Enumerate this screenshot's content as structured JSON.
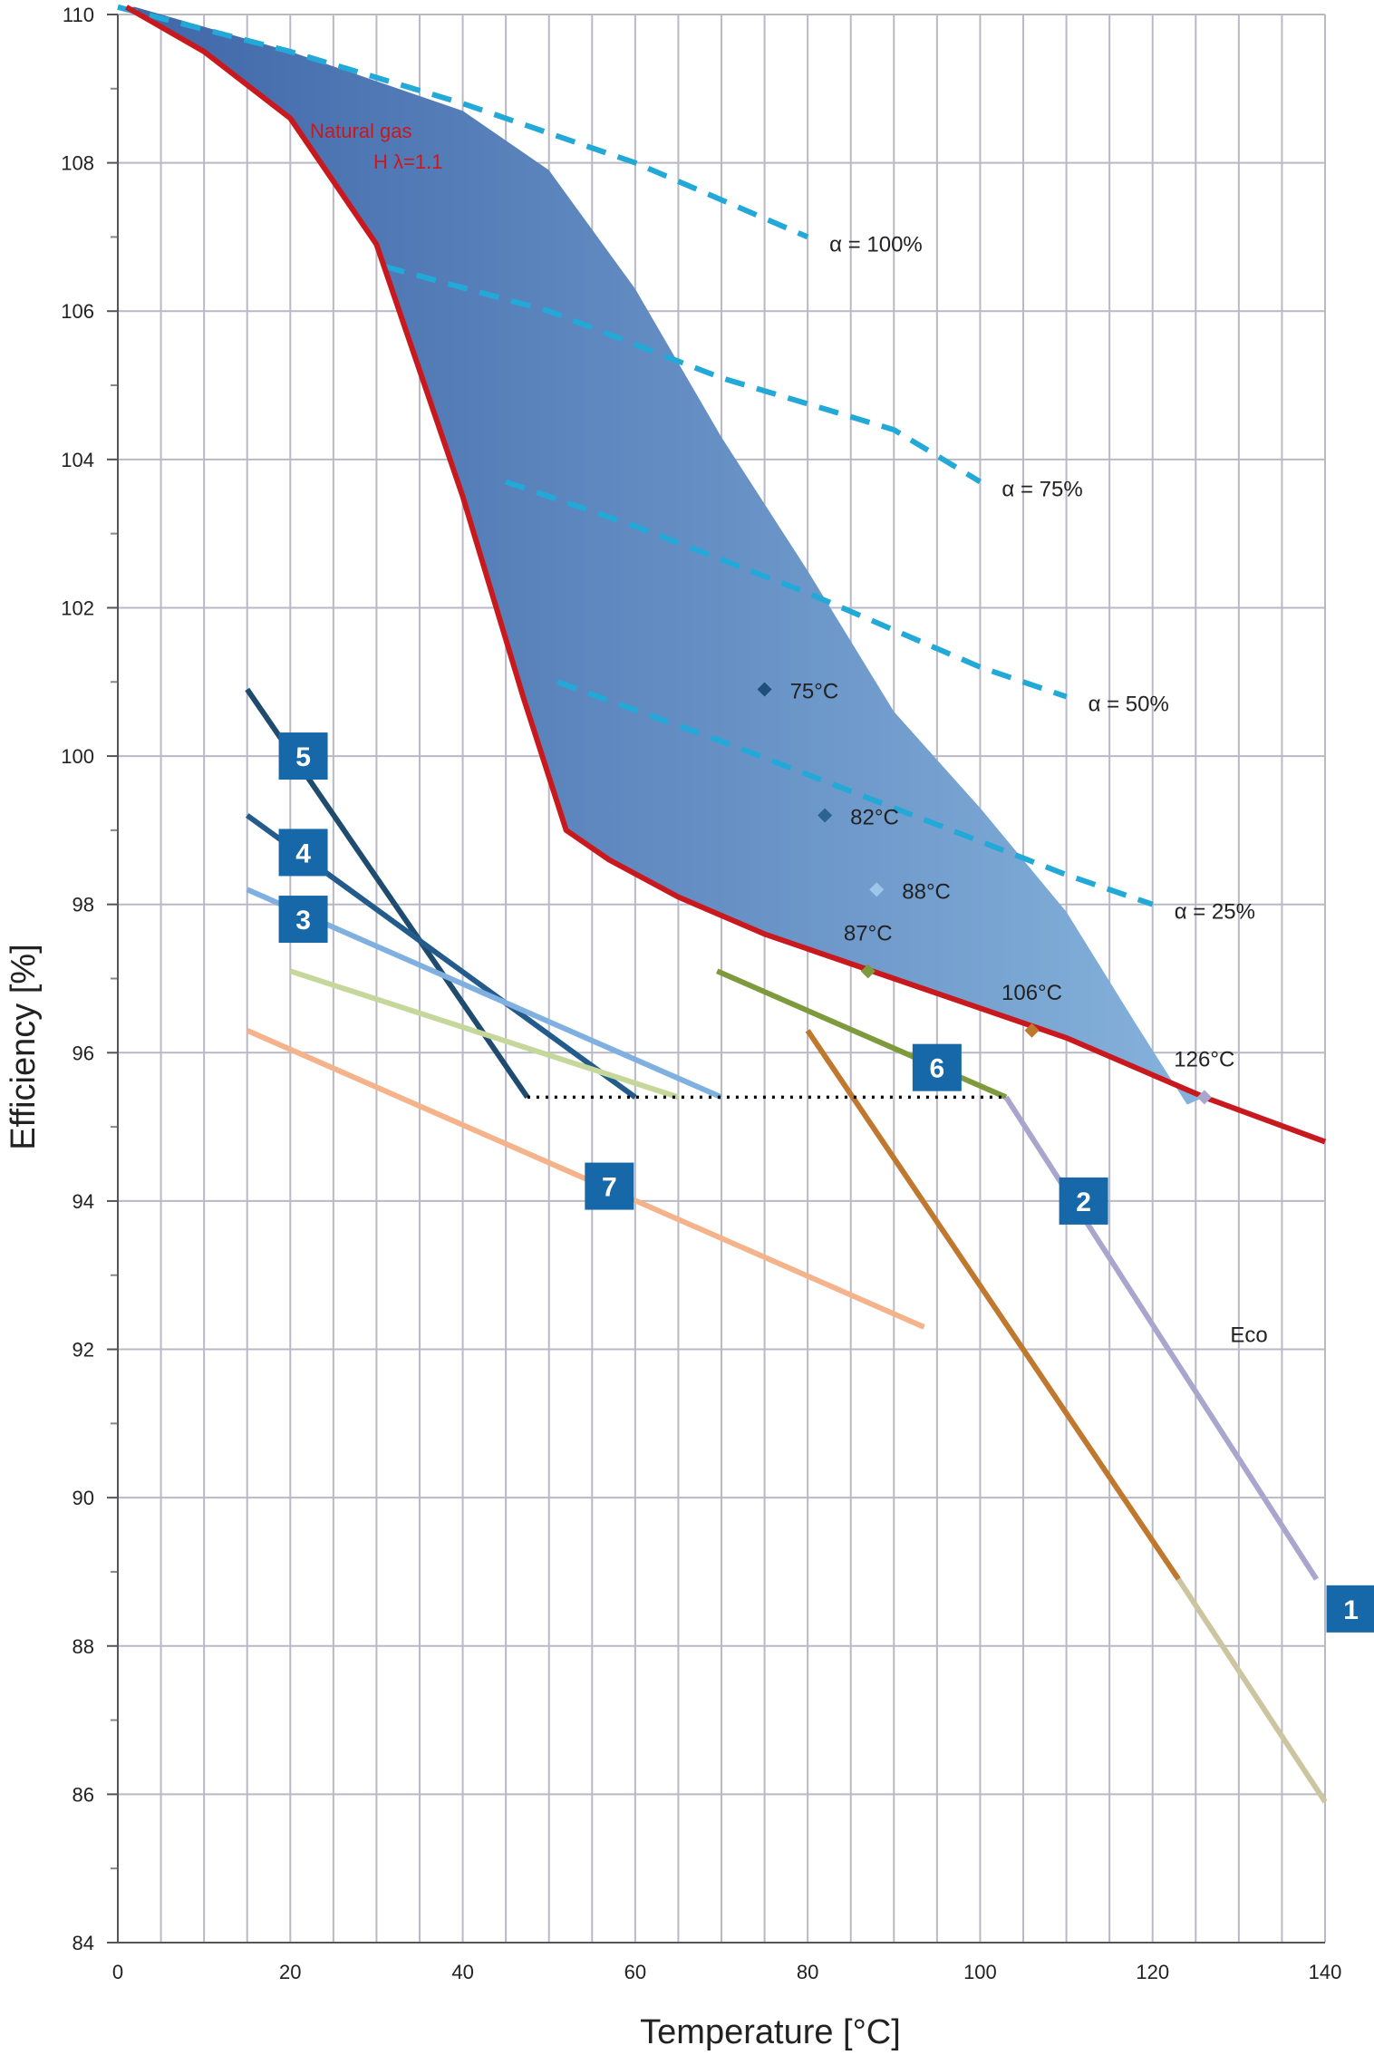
{
  "chart_data": {
    "type": "line",
    "xlabel": "Temperature [°C]",
    "ylabel": "Efficiency [%]",
    "xlim": [
      0,
      140
    ],
    "ylim": [
      84,
      110
    ],
    "x_ticks": [
      0,
      20,
      40,
      60,
      80,
      100,
      120,
      140
    ],
    "y_ticks": [
      84,
      86,
      88,
      90,
      92,
      94,
      96,
      98,
      100,
      102,
      104,
      106,
      108,
      110
    ],
    "grid": true,
    "shaded_region": {
      "upper": [
        [
          2,
          110.1
        ],
        [
          20,
          109.5
        ],
        [
          40,
          108.7
        ],
        [
          50,
          107.9
        ],
        [
          60,
          106.3
        ],
        [
          70,
          104.3
        ],
        [
          80,
          102.5
        ],
        [
          90,
          100.6
        ],
        [
          100,
          99.3
        ],
        [
          110,
          97.9
        ],
        [
          118,
          96.4
        ],
        [
          124,
          95.3
        ]
      ],
      "color_left": "#3f66a8",
      "color_right": "#86b3dc"
    },
    "gas_curve": {
      "label_line1": "Natural gas",
      "label_line2": "H λ=1.1",
      "color": "#c8191f",
      "points": [
        [
          1,
          110.1
        ],
        [
          10,
          109.5
        ],
        [
          20,
          108.6
        ],
        [
          30,
          106.9
        ],
        [
          40,
          103.5
        ],
        [
          47,
          100.8
        ],
        [
          52,
          99.0
        ],
        [
          57,
          98.6
        ],
        [
          65,
          98.1
        ],
        [
          75,
          97.6
        ],
        [
          90,
          97.0
        ],
        [
          100,
          96.6
        ],
        [
          110,
          96.2
        ],
        [
          126,
          95.4
        ],
        [
          140,
          94.8
        ]
      ]
    },
    "alpha_lines": [
      {
        "label": "α = 100%",
        "color": "#22a9d8",
        "points": [
          [
            0,
            110.1
          ],
          [
            20,
            109.5
          ],
          [
            40,
            108.8
          ],
          [
            60,
            108.0
          ],
          [
            80,
            107.0
          ]
        ]
      },
      {
        "label": "α = 75%",
        "color": "#22a9d8",
        "points": [
          [
            31,
            106.6
          ],
          [
            50,
            106.0
          ],
          [
            70,
            105.1
          ],
          [
            90,
            104.4
          ],
          [
            100,
            103.7
          ]
        ]
      },
      {
        "label": "α = 50%",
        "color": "#22a9d8",
        "points": [
          [
            45,
            103.7
          ],
          [
            60,
            103.1
          ],
          [
            80,
            102.2
          ],
          [
            100,
            101.2
          ],
          [
            110,
            100.8
          ]
        ]
      },
      {
        "label": "α = 25%",
        "color": "#22a9d8",
        "points": [
          [
            51,
            101.0
          ],
          [
            70,
            100.2
          ],
          [
            90,
            99.3
          ],
          [
            110,
            98.4
          ],
          [
            120,
            98.0
          ]
        ]
      }
    ],
    "markers": [
      {
        "label": "75°C",
        "x": 75,
        "y": 100.9,
        "color": "#1f4f7a"
      },
      {
        "label": "82°C",
        "x": 82,
        "y": 99.2,
        "color": "#2c6491"
      },
      {
        "label": "88°C",
        "x": 88,
        "y": 98.2,
        "color": "#9cc6ea"
      },
      {
        "label": "87°C",
        "x": 87,
        "y": 97.1,
        "color": "#7d9a3d"
      },
      {
        "label": "106°C",
        "x": 106,
        "y": 96.3,
        "color": "#c0782f"
      },
      {
        "label": "126°C",
        "x": 126,
        "y": 95.4,
        "color": "#a8a6cc"
      }
    ],
    "series": [
      {
        "name": "5",
        "color": "#1f4c6e",
        "points": [
          [
            15,
            100.9
          ],
          [
            47.5,
            95.4
          ]
        ]
      },
      {
        "name": "4",
        "color": "#235c8c",
        "points": [
          [
            15,
            99.2
          ],
          [
            60,
            95.4
          ]
        ]
      },
      {
        "name": "3",
        "color": "#7fb0e0",
        "points": [
          [
            15,
            98.2
          ],
          [
            70,
            95.4
          ]
        ]
      },
      {
        "name": "",
        "color": "#c6d79c",
        "points": [
          [
            20,
            97.1
          ],
          [
            65,
            95.4
          ]
        ]
      },
      {
        "name": "7",
        "color": "#f4b38a",
        "points": [
          [
            15,
            96.3
          ],
          [
            93.5,
            92.3
          ]
        ]
      },
      {
        "name": "6",
        "color": "#7d9a3d",
        "points": [
          [
            69.5,
            97.1
          ],
          [
            103,
            95.4
          ]
        ]
      },
      {
        "name": "",
        "color": "#c0782f",
        "points": [
          [
            80,
            96.3
          ],
          [
            123,
            88.9
          ]
        ]
      },
      {
        "name": "",
        "color": "#cdc4a0",
        "points": [
          [
            123,
            88.9
          ],
          [
            140,
            85.9
          ]
        ]
      },
      {
        "name": "2",
        "color": "#a8a6cc",
        "points": [
          [
            103,
            95.4
          ],
          [
            139,
            88.9
          ]
        ]
      }
    ],
    "dotted_line": {
      "points": [
        [
          47.5,
          95.4
        ],
        [
          103,
          95.4
        ]
      ],
      "color": "#000000"
    },
    "badges": [
      {
        "label": "5",
        "x": 21.5,
        "y": 100.0,
        "color": "#1768a8"
      },
      {
        "label": "4",
        "x": 21.5,
        "y": 98.7,
        "color": "#1768a8"
      },
      {
        "label": "3",
        "x": 21.5,
        "y": 97.8,
        "color": "#1768a8"
      },
      {
        "label": "7",
        "x": 57,
        "y": 94.2,
        "color": "#1768a8"
      },
      {
        "label": "6",
        "x": 95,
        "y": 95.8,
        "color": "#1768a8"
      },
      {
        "label": "2",
        "x": 112,
        "y": 94.0,
        "color": "#1768a8"
      },
      {
        "label": "1",
        "x": 143,
        "y": 88.5,
        "color": "#1768a8"
      }
    ],
    "text_annotations": [
      {
        "label": "Eco",
        "x": 129,
        "y": 92.1
      }
    ]
  }
}
